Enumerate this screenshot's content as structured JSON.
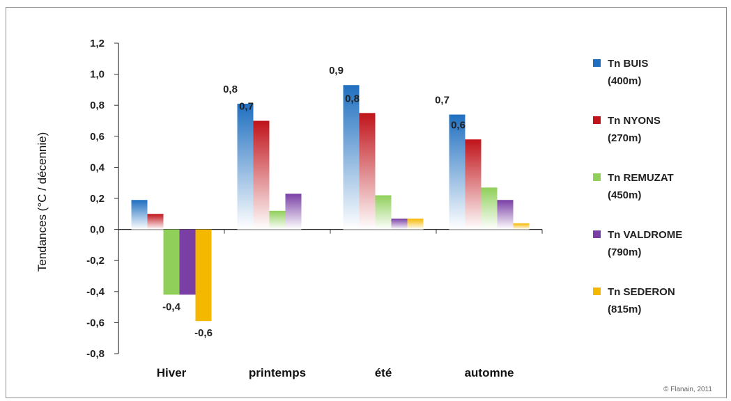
{
  "chart_data": {
    "type": "bar",
    "ylabel": "Tendances  (°C / décennie)",
    "xlabel": "",
    "ylim": [
      -0.8,
      1.2
    ],
    "yticks": [
      "-0,8",
      "-0,6",
      "-0,4",
      "-0,2",
      "0,0",
      "0,2",
      "0,4",
      "0,6",
      "0,8",
      "1,0",
      "1,2"
    ],
    "categories": [
      "Hiver",
      "printemps",
      "été",
      "automne"
    ],
    "series": [
      {
        "name": "Tn BUIS",
        "name_line2": "(400m)",
        "color": "#1f6fc0",
        "values": [
          0.19,
          0.81,
          0.93,
          0.74
        ],
        "labels": [
          "",
          "0,8",
          "0,9",
          "0,7"
        ]
      },
      {
        "name": "Tn NYONS",
        "name_line2": "(270m)",
        "color": "#c0131a",
        "values": [
          0.1,
          0.7,
          0.75,
          0.58
        ],
        "labels": [
          "",
          "0,7",
          "0,8",
          "0,6"
        ]
      },
      {
        "name": "Tn REMUZAT",
        "name_line2": "(450m)",
        "color": "#8fcf5a",
        "values": [
          -0.42,
          0.12,
          0.22,
          0.27
        ],
        "labels": [
          "-0,4",
          "",
          "",
          ""
        ]
      },
      {
        "name": "Tn VALDROME",
        "name_line2": "(790m)",
        "color": "#7a3fa5",
        "values": [
          -0.42,
          0.23,
          0.07,
          0.19
        ],
        "labels": [
          "",
          "",
          "",
          ""
        ]
      },
      {
        "name": "Tn SEDERON",
        "name_line2": "(815m)",
        "color": "#f5b800",
        "values": [
          -0.59,
          0.0,
          0.07,
          0.04
        ],
        "labels": [
          "-0,6",
          "",
          "",
          ""
        ]
      }
    ],
    "grid": false,
    "legend": "right"
  },
  "credit": "© Flanain, 2011"
}
